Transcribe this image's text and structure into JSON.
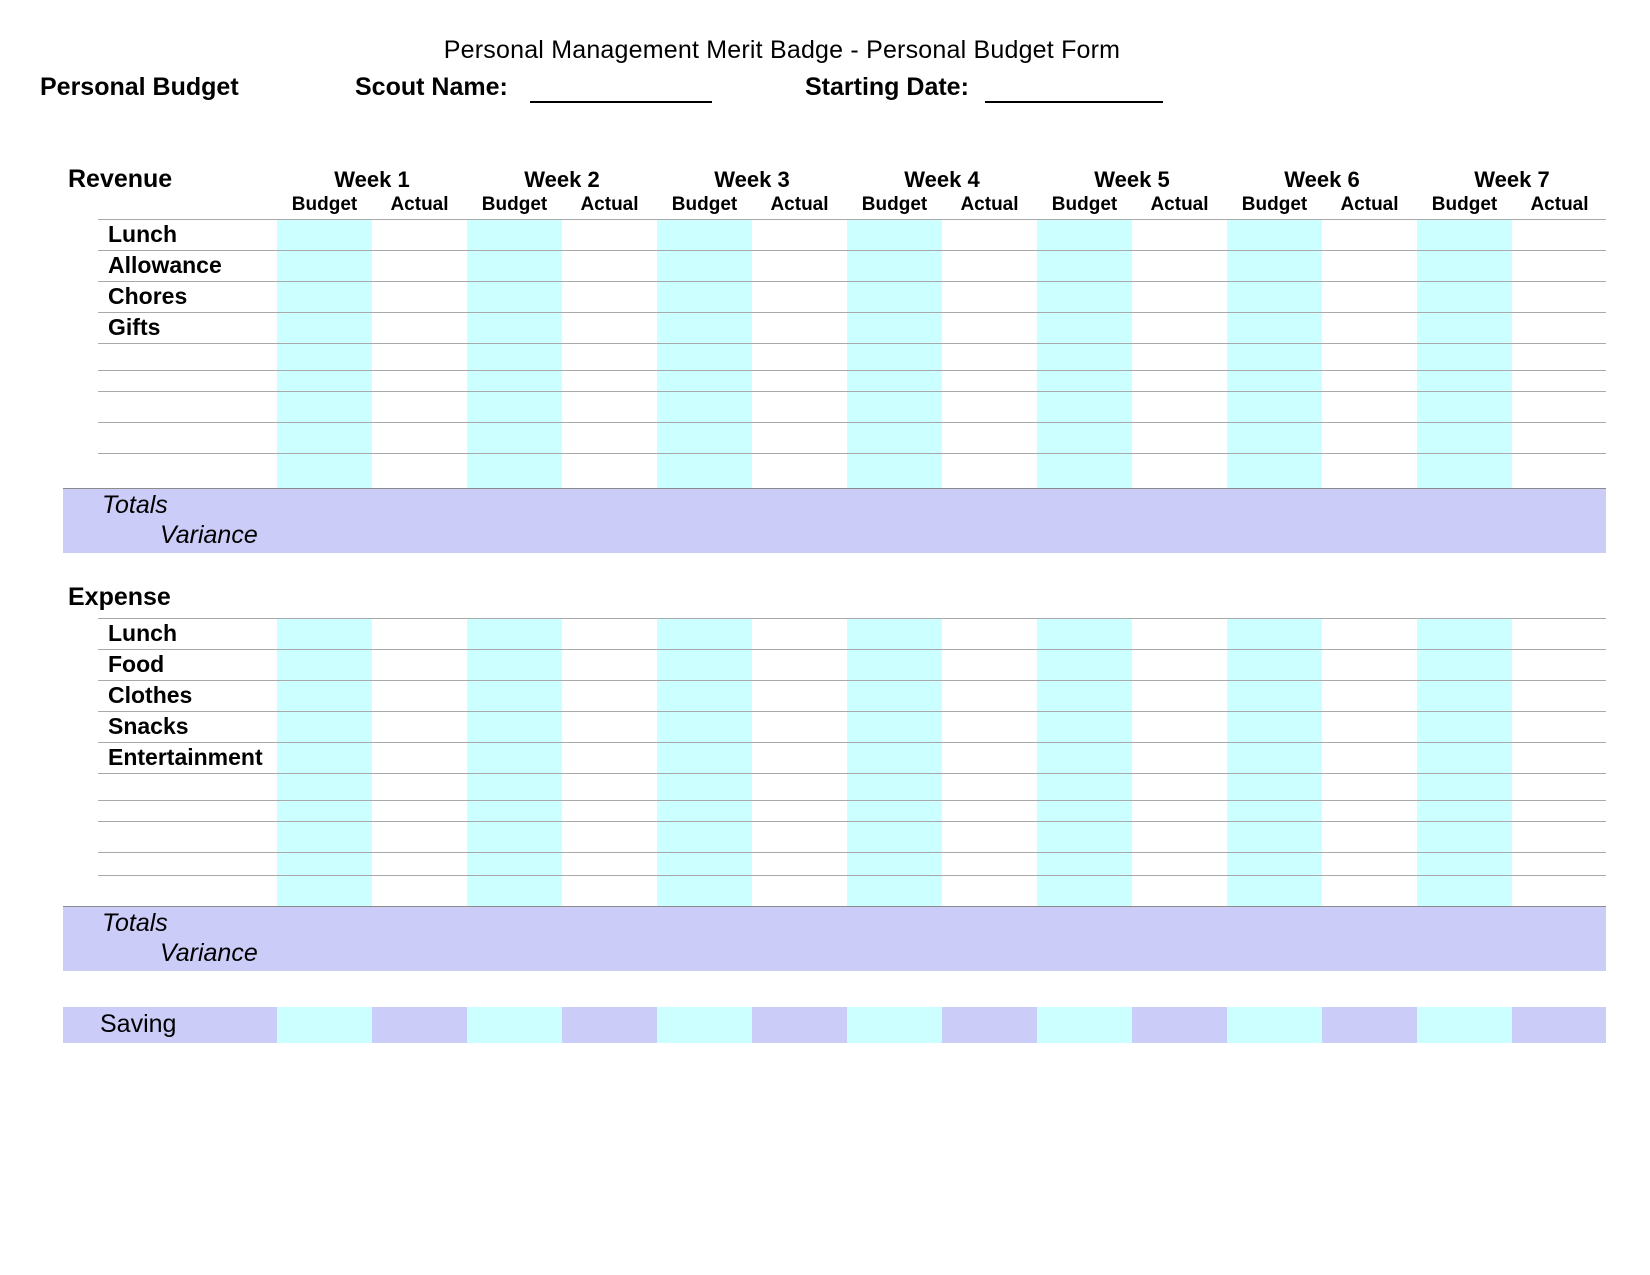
{
  "title": "Personal Management Merit Badge  -  Personal Budget Form",
  "form": {
    "name": "Personal Budget",
    "scout_name_label": "Scout Name:",
    "scout_name_value": "",
    "starting_date_label": "Starting Date:",
    "starting_date_value": ""
  },
  "columns": {
    "weeks": [
      "Week 1",
      "Week 2",
      "Week 3",
      "Week 4",
      "Week 5",
      "Week 6",
      "Week 7"
    ],
    "sub": [
      "Budget",
      "Actual"
    ]
  },
  "revenue": {
    "label": "Revenue",
    "rows": [
      "Lunch",
      "Allowance",
      "Chores",
      "Gifts"
    ],
    "empty_rows": 5,
    "totals_label": "Totals",
    "variance_label": "Variance"
  },
  "expense": {
    "label": "Expense",
    "rows": [
      "Lunch",
      "Food",
      "Clothes",
      "Snacks",
      "Entertainment"
    ],
    "empty_rows": 5,
    "totals_label": "Totals",
    "variance_label": "Variance"
  },
  "saving": {
    "label": "Saving"
  },
  "colors": {
    "budget_fill": "#CCFFFF",
    "band_fill": "#CCCCF8",
    "grid_line": "#A9A9A9"
  }
}
